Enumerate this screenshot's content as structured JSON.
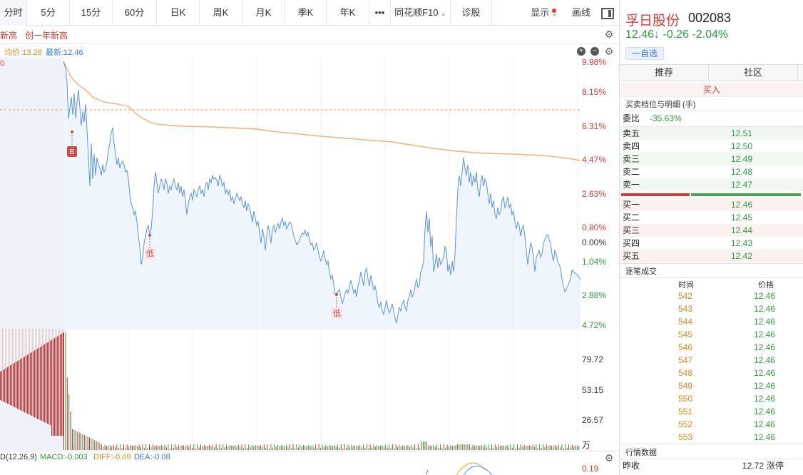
{
  "period_tabs": [
    {
      "label": "分时",
      "active": true
    },
    {
      "label": "5分"
    },
    {
      "label": "15分"
    },
    {
      "label": "60分"
    },
    {
      "label": "日K"
    },
    {
      "label": "周K"
    },
    {
      "label": "月K"
    },
    {
      "label": "季K"
    },
    {
      "label": "年K"
    },
    {
      "label": "•••"
    },
    {
      "label": "同花顺F10"
    },
    {
      "label": "诊股"
    }
  ],
  "toolbar": {
    "display_label": "显示",
    "draw_label": "画线"
  },
  "new_high": {
    "label1": "新高",
    "label2": "创一年新高"
  },
  "chart_header": {
    "avg_label": "均价:13.28",
    "latest_label": "最新:12.46"
  },
  "price_axis_right": [
    "9.98%",
    "8.15%",
    "6.31%",
    "4.47%",
    "2.63%",
    "0.80%",
    "0.00%",
    "1.04%",
    "2.88%",
    "4.72%"
  ],
  "volume_axis_right": [
    "79.72",
    "53.15",
    "26.57",
    "万"
  ],
  "markers": {
    "buy": "B",
    "low": "低"
  },
  "macd": {
    "title": "D(12,26,9)",
    "macd": "MACD:-0.003",
    "diff": "DIFF:-0.09",
    "dea": "DEA:-0.08",
    "axis_top": "0.19"
  },
  "stock": {
    "name": "孚日股份",
    "code": "002083",
    "price": "12.46↓",
    "change": "-0.26",
    "change_pct": "-2.04%",
    "watch_label": "一自选"
  },
  "panel_tabs": [
    "推荐",
    "社区"
  ],
  "buy_label": "买入",
  "orderbook": {
    "title": "买卖档位与明细 (手)",
    "ratio_label": "委比",
    "ratio_value": "-35.63%",
    "sells": [
      {
        "label": "卖五",
        "price": "12.51"
      },
      {
        "label": "卖四",
        "price": "12.50"
      },
      {
        "label": "卖三",
        "price": "12.49"
      },
      {
        "label": "卖二",
        "price": "12.48"
      },
      {
        "label": "卖一",
        "price": "12.47"
      }
    ],
    "buys": [
      {
        "label": "买一",
        "price": "12.46"
      },
      {
        "label": "买二",
        "price": "12.45"
      },
      {
        "label": "买三",
        "price": "12.44"
      },
      {
        "label": "买四",
        "price": "12.43"
      },
      {
        "label": "买五",
        "price": "12.42"
      }
    ]
  },
  "ticks": {
    "title": "逐笔成交",
    "col_time": "时间",
    "col_price": "价格",
    "rows": [
      {
        "time": "542",
        "price": "12.46"
      },
      {
        "time": "543",
        "price": "12.46"
      },
      {
        "time": "544",
        "price": "12.46"
      },
      {
        "time": "545",
        "price": "12.46"
      },
      {
        "time": "546",
        "price": "12.46"
      },
      {
        "time": "547",
        "price": "12.46"
      },
      {
        "time": "548",
        "price": "12.46"
      },
      {
        "time": "549",
        "price": "12.46"
      },
      {
        "time": "550",
        "price": "12.46"
      },
      {
        "time": "551",
        "price": "12.46"
      },
      {
        "time": "552",
        "price": "12.46"
      },
      {
        "time": "553",
        "price": "12.46"
      }
    ]
  },
  "quote": {
    "title": "行情数据",
    "prev_close_label": "昨收",
    "prev_close_value": "12.72",
    "limit_up_label": "涨停"
  },
  "colors": {
    "up": "#e03b3b",
    "down": "#2e9d3e",
    "price_line": "#5b94e0",
    "avg_line": "#f0b27a"
  }
}
